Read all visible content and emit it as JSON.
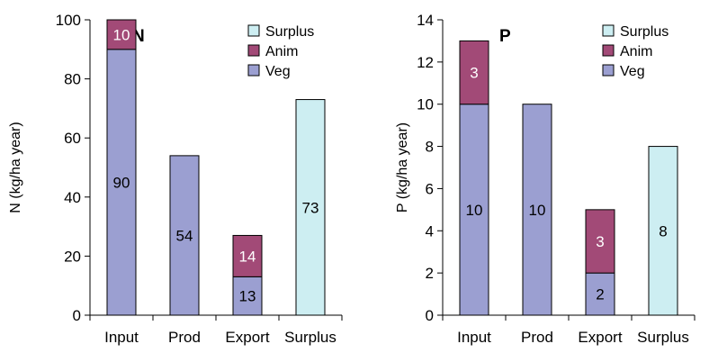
{
  "colors": {
    "Surplus": "#cdeef2",
    "Anim": "#a24a77",
    "Veg": "#9b9fd1",
    "label_dark": "#000000",
    "label_light": "#ffffff"
  },
  "chart_data": [
    {
      "type": "bar",
      "stacked": true,
      "title": "N",
      "ylabel": "N (kg/ha year)",
      "xlabel": "",
      "ylim": [
        0,
        100
      ],
      "yticks": [
        0,
        20,
        40,
        60,
        80,
        100
      ],
      "grid": false,
      "legend_position": "top-right",
      "legend": [
        "Surplus",
        "Anim",
        "Veg"
      ],
      "categories": [
        "Input",
        "Prod",
        "Export",
        "Surplus"
      ],
      "series": [
        {
          "name": "Veg",
          "values": [
            90,
            54,
            13,
            null
          ],
          "labels": [
            "90",
            "54",
            "13",
            ""
          ]
        },
        {
          "name": "Anim",
          "values": [
            10,
            null,
            14,
            null
          ],
          "labels": [
            "10",
            "",
            "14",
            ""
          ]
        },
        {
          "name": "Surplus",
          "values": [
            null,
            null,
            null,
            73
          ],
          "labels": [
            "",
            "",
            "",
            "73"
          ]
        }
      ]
    },
    {
      "type": "bar",
      "stacked": true,
      "title": "P",
      "ylabel": "P (kg/ha year)",
      "xlabel": "",
      "ylim": [
        0,
        14
      ],
      "yticks": [
        0,
        2,
        4,
        6,
        8,
        10,
        12,
        14
      ],
      "grid": false,
      "legend_position": "top-right",
      "legend": [
        "Surplus",
        "Anim",
        "Veg"
      ],
      "categories": [
        "Input",
        "Prod",
        "Export",
        "Surplus"
      ],
      "series": [
        {
          "name": "Veg",
          "values": [
            10,
            10,
            2,
            null
          ],
          "labels": [
            "10",
            "10",
            "2",
            ""
          ]
        },
        {
          "name": "Anim",
          "values": [
            3,
            null,
            3,
            null
          ],
          "labels": [
            "3",
            "",
            "3",
            ""
          ]
        },
        {
          "name": "Surplus",
          "values": [
            null,
            null,
            null,
            8
          ],
          "labels": [
            "",
            "",
            "",
            "8"
          ]
        }
      ]
    }
  ]
}
